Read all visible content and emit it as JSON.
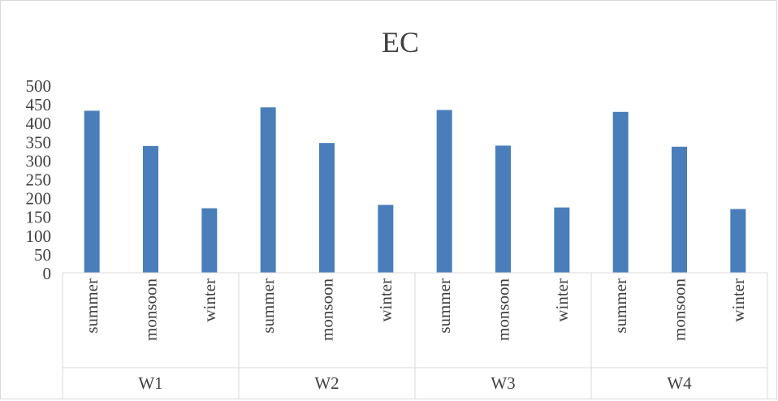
{
  "chart_data": {
    "type": "bar",
    "title": "EC",
    "xlabel": "",
    "ylabel": "",
    "ylim": [
      0,
      500
    ],
    "yticks": [
      0,
      50,
      100,
      150,
      200,
      250,
      300,
      350,
      400,
      450,
      500
    ],
    "grid": false,
    "legend": "none",
    "bar_color": "#4a7ebb",
    "groups": [
      {
        "name": "W1",
        "categories": [
          "summer",
          "monsoon",
          "winter"
        ],
        "values": [
          432,
          338,
          172
        ]
      },
      {
        "name": "W2",
        "categories": [
          "summer",
          "monsoon",
          "winter"
        ],
        "values": [
          441,
          346,
          181
        ]
      },
      {
        "name": "W3",
        "categories": [
          "summer",
          "monsoon",
          "winter"
        ],
        "values": [
          434,
          339,
          174
        ]
      },
      {
        "name": "W4",
        "categories": [
          "summer",
          "monsoon",
          "winter"
        ],
        "values": [
          429,
          336,
          170
        ]
      }
    ]
  }
}
